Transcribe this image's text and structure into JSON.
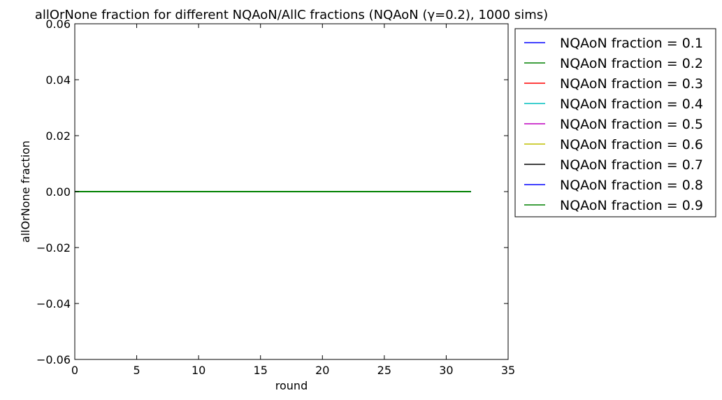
{
  "chart_data": {
    "type": "line",
    "title": "allOrNone fraction for different NQAoN/AllC fractions (NQAoN (γ=0.2), 1000 sims)",
    "xlabel": "round",
    "ylabel": "allOrNone fraction",
    "xlim": [
      0,
      35
    ],
    "ylim": [
      -0.06,
      0.06
    ],
    "xticks": [
      0,
      5,
      10,
      15,
      20,
      25,
      30,
      35
    ],
    "xtick_labels": [
      "0",
      "5",
      "10",
      "15",
      "20",
      "25",
      "30",
      "35"
    ],
    "yticks": [
      -0.06,
      -0.04,
      -0.02,
      0.0,
      0.02,
      0.04,
      0.06
    ],
    "ytick_labels": [
      "−0.06",
      "−0.04",
      "−0.02",
      "0.00",
      "0.02",
      "0.04",
      "0.06"
    ],
    "grid": false,
    "legend_position": "outside-top-right",
    "x_range": [
      0,
      32
    ],
    "series": [
      {
        "name": "NQAoN fraction = 0.1",
        "color": "#0000ff",
        "value": 0.0
      },
      {
        "name": "NQAoN fraction = 0.2",
        "color": "#008000",
        "value": 0.0
      },
      {
        "name": "NQAoN fraction = 0.3",
        "color": "#ff0000",
        "value": 0.0
      },
      {
        "name": "NQAoN fraction = 0.4",
        "color": "#00bfbf",
        "value": 0.0
      },
      {
        "name": "NQAoN fraction = 0.5",
        "color": "#bf00bf",
        "value": 0.0
      },
      {
        "name": "NQAoN fraction = 0.6",
        "color": "#bfbf00",
        "value": 0.0
      },
      {
        "name": "NQAoN fraction = 0.7",
        "color": "#000000",
        "value": 0.0
      },
      {
        "name": "NQAoN fraction = 0.8",
        "color": "#0000ff",
        "value": 0.0
      },
      {
        "name": "NQAoN fraction = 0.9",
        "color": "#008000",
        "value": 0.0
      }
    ]
  }
}
